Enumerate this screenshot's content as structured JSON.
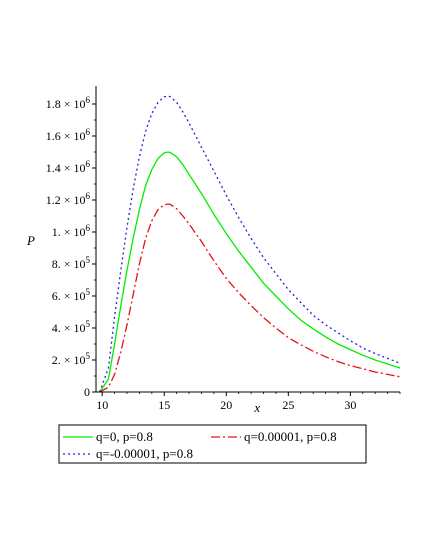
{
  "chart_data": {
    "type": "line",
    "xlabel": "x",
    "ylabel": "P",
    "xlim": [
      9.5,
      34
    ],
    "ylim": [
      0,
      1900000
    ],
    "x_ticks": [
      10,
      15,
      20,
      25,
      30
    ],
    "x_tick_labels": [
      "10",
      "15",
      "20",
      "25",
      "30"
    ],
    "y_ticks": [
      0,
      200000,
      400000,
      600000,
      800000,
      1000000,
      1200000,
      1400000,
      1600000,
      1800000
    ],
    "y_tick_labels": [
      {
        "mantissa": "0",
        "exp": ""
      },
      {
        "mantissa": "2. × 10",
        "exp": "5"
      },
      {
        "mantissa": "4. × 10",
        "exp": "5"
      },
      {
        "mantissa": "6. × 10",
        "exp": "5"
      },
      {
        "mantissa": "8. × 10",
        "exp": "5"
      },
      {
        "mantissa": "1. × 10",
        "exp": "6"
      },
      {
        "mantissa": "1.2 × 10",
        "exp": "6"
      },
      {
        "mantissa": "1.4 × 10",
        "exp": "6"
      },
      {
        "mantissa": "1.6 × 10",
        "exp": "6"
      },
      {
        "mantissa": "1.8 × 10",
        "exp": "6"
      }
    ],
    "grid": false,
    "legend_position": "bottom",
    "series": [
      {
        "name": "q=0, p=0.8",
        "color": "#00ee00",
        "dash": "solid",
        "x": [
          9.8,
          10.5,
          11,
          11.5,
          12,
          12.5,
          13,
          13.5,
          14,
          14.5,
          15,
          15.3,
          15.5,
          16,
          16.5,
          17,
          18,
          19,
          20,
          21,
          22,
          23,
          24,
          25,
          26,
          27,
          28,
          29,
          30,
          31,
          32,
          33,
          34
        ],
        "y": [
          0,
          80000,
          300000,
          540000,
          760000,
          960000,
          1140000,
          1290000,
          1390000,
          1460000,
          1495000,
          1500000,
          1496000,
          1470000,
          1420000,
          1360000,
          1240000,
          1110000,
          990000,
          880000,
          780000,
          680000,
          600000,
          520000,
          450000,
          395000,
          345000,
          300000,
          265000,
          230000,
          200000,
          175000,
          150000
        ]
      },
      {
        "name": "q=0.00001, p=0.8",
        "color": "#e81010",
        "dash": "dashdot",
        "x": [
          9.8,
          10.5,
          11,
          11.5,
          12,
          12.5,
          13,
          13.5,
          14,
          14.5,
          15,
          15.3,
          15.5,
          16,
          16.5,
          17,
          18,
          19,
          20,
          21,
          22,
          23,
          24,
          25,
          26,
          27,
          28,
          29,
          30,
          31,
          32,
          33,
          34
        ],
        "y": [
          0,
          30000,
          110000,
          250000,
          420000,
          610000,
          800000,
          960000,
          1070000,
          1140000,
          1170000,
          1175000,
          1172000,
          1145000,
          1100000,
          1050000,
          940000,
          820000,
          710000,
          620000,
          540000,
          465000,
          400000,
          340000,
          295000,
          255000,
          220000,
          190000,
          165000,
          145000,
          125000,
          110000,
          95000
        ]
      },
      {
        "name": "q=-0.00001, p=0.8",
        "color": "#2222dd",
        "dash": "dotted",
        "x": [
          9.8,
          10.5,
          11,
          11.5,
          12,
          12.5,
          13,
          13.5,
          14,
          14.5,
          15,
          15.3,
          15.5,
          16,
          16.5,
          17,
          18,
          19,
          20,
          21,
          22,
          23,
          24,
          25,
          26,
          27,
          28,
          29,
          30,
          31,
          32,
          33,
          34
        ],
        "y": [
          0,
          150000,
          470000,
          760000,
          1030000,
          1270000,
          1470000,
          1630000,
          1740000,
          1810000,
          1845000,
          1850000,
          1845000,
          1810000,
          1750000,
          1680000,
          1530000,
          1380000,
          1230000,
          1090000,
          960000,
          840000,
          740000,
          640000,
          560000,
          480000,
          420000,
          370000,
          320000,
          275000,
          240000,
          210000,
          180000
        ]
      }
    ]
  }
}
